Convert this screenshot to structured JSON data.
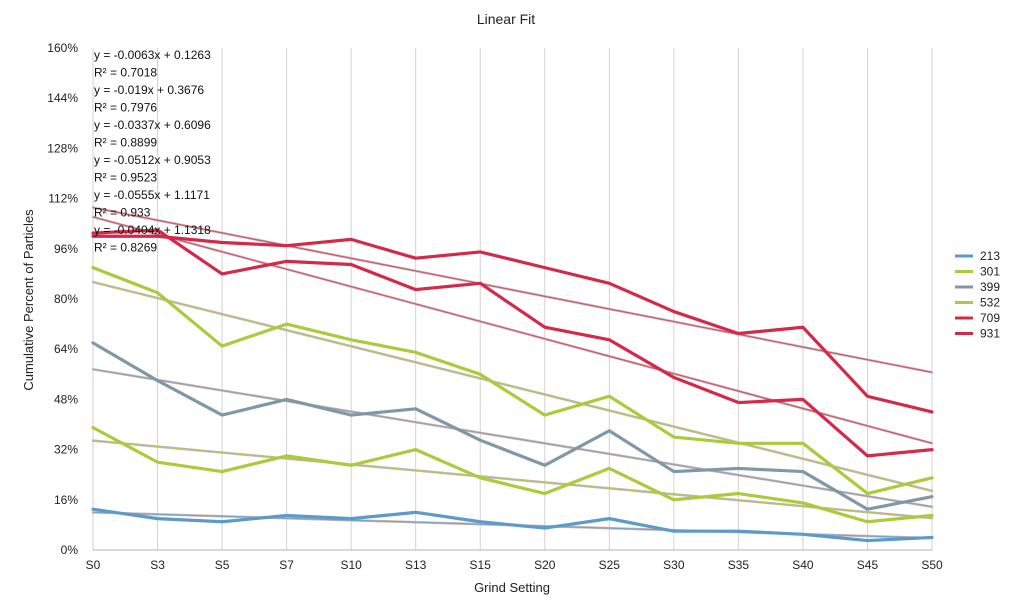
{
  "chart_data": {
    "type": "line",
    "title": "Linear Fit",
    "xlabel": "Grind Setting",
    "ylabel": "Cumulative Percent of Particles",
    "categories": [
      "S0",
      "S3",
      "S5",
      "S7",
      "S10",
      "S13",
      "S15",
      "S20",
      "S25",
      "S30",
      "S35",
      "S40",
      "S45",
      "S50"
    ],
    "ylim": [
      0,
      160
    ],
    "yticks": [
      "0%",
      "16%",
      "32%",
      "48%",
      "64%",
      "80%",
      "96%",
      "112%",
      "128%",
      "144%",
      "160%"
    ],
    "grid": "vertical",
    "legend_position": "right",
    "series": [
      {
        "name": "213",
        "color": "#5b9bc8",
        "values": [
          13,
          10,
          9,
          11,
          10,
          12,
          9,
          7,
          10,
          6,
          6,
          5,
          3,
          4
        ]
      },
      {
        "name": "301",
        "color": "#a9cc3a",
        "values": [
          39,
          28,
          25,
          30,
          27,
          32,
          23,
          18,
          26,
          16,
          18,
          15,
          9,
          11
        ]
      },
      {
        "name": "399",
        "color": "#7f98a8",
        "values": [
          66,
          54,
          43,
          48,
          43,
          45,
          35,
          27,
          38,
          25,
          26,
          25,
          13,
          17
        ]
      },
      {
        "name": "532",
        "color": "#a9cc3a",
        "values": [
          90,
          82,
          65,
          72,
          67,
          63,
          56,
          43,
          49,
          36,
          34,
          34,
          18,
          23
        ]
      },
      {
        "name": "709",
        "color": "#d42a4a",
        "values": [
          101,
          102,
          88,
          92,
          91,
          83,
          85,
          71,
          67,
          55,
          47,
          48,
          30,
          32
        ]
      },
      {
        "name": "931",
        "color": "#d42a4a",
        "values": [
          100,
          100,
          98,
          97,
          99,
          93,
          95,
          90,
          85,
          76,
          69,
          71,
          49,
          44
        ]
      }
    ],
    "trendlines": [
      {
        "series": "213",
        "slope": -0.0063,
        "intercept": 0.1263,
        "equation": "y = -0.0063x + 0.1263",
        "r2": "R² = 0.7018"
      },
      {
        "series": "301",
        "slope": -0.019,
        "intercept": 0.3676,
        "equation": "y = -0.019x + 0.3676",
        "r2": "R² = 0.7976"
      },
      {
        "series": "399",
        "slope": -0.0337,
        "intercept": 0.6096,
        "equation": "y = -0.0337x + 0.6096",
        "r2": "R² = 0.8899"
      },
      {
        "series": "532",
        "slope": -0.0512,
        "intercept": 0.9053,
        "equation": "y = -0.0512x + 0.9053",
        "r2": "R² = 0.9523"
      },
      {
        "series": "709",
        "slope": -0.0555,
        "intercept": 1.1171,
        "equation": "y = -0.0555x + 1.1171",
        "r2": "R² = 0.933"
      },
      {
        "series": "931",
        "slope": -0.0404,
        "intercept": 1.1318,
        "equation": "y = -0.0404x + 1.1318",
        "r2": "R² = 0.8269"
      }
    ],
    "trend_color": "#c8b4b6"
  }
}
